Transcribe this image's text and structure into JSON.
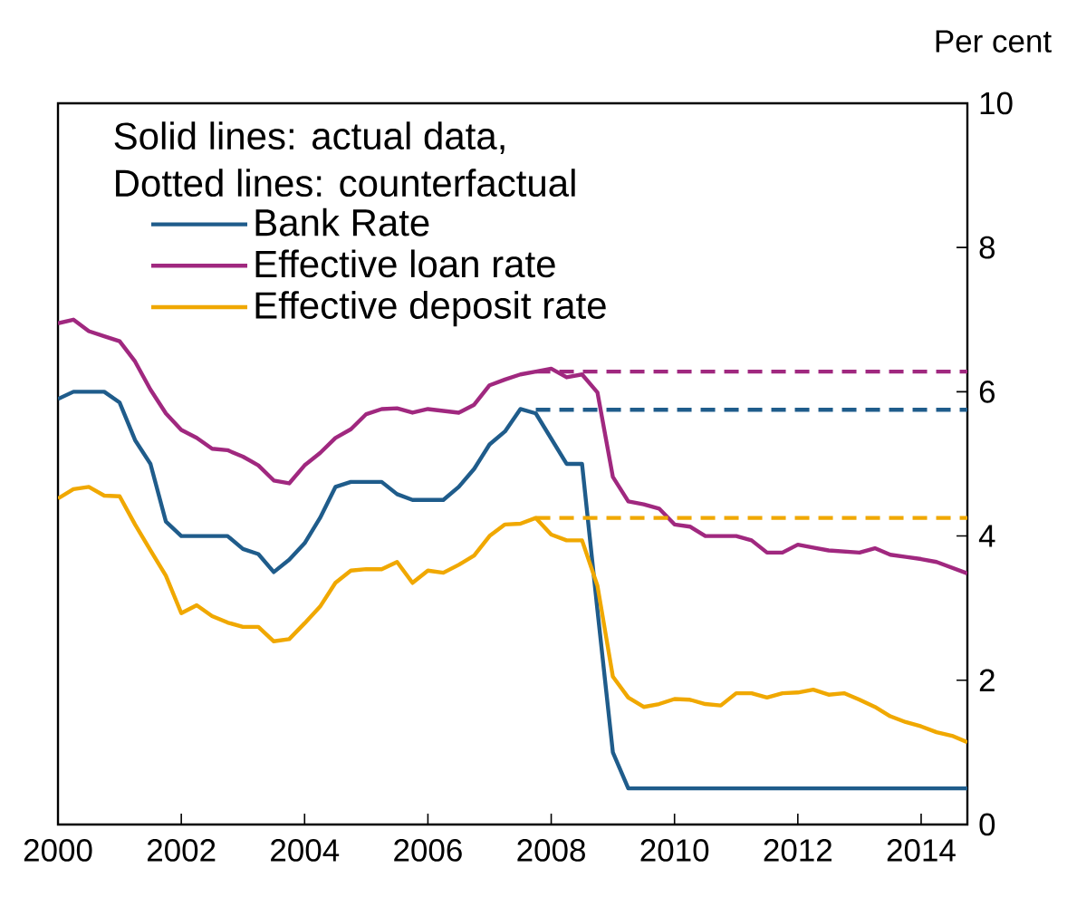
{
  "chart_data": {
    "type": "line",
    "ylabel": "Per cent",
    "legend_title": "Solid lines: actual data, Dotted lines: counterfactual",
    "legend": "top left",
    "marker": "none",
    "xlim": [
      2000,
      2014.75
    ],
    "xticks": [
      2000,
      2002,
      2004,
      2006,
      2008,
      2010,
      2012,
      2014
    ],
    "ylim": [
      0,
      10
    ],
    "yticks": [
      0,
      2,
      4,
      6,
      8,
      10
    ],
    "series": [
      {
        "name": "Bank Rate",
        "color": "#1f5c8b",
        "line_style": "solid",
        "x": [
          2000,
          2000.25,
          2000.75,
          2001,
          2001.25,
          2001.5,
          2001.75,
          2002,
          2002.75,
          2003,
          2003.25,
          2003.5,
          2003.75,
          2004,
          2004.25,
          2004.5,
          2004.75,
          2005.25,
          2005.5,
          2005.75,
          2006.25,
          2006.5,
          2006.75,
          2007,
          2007.25,
          2007.5,
          2007.75,
          2008.25,
          2008.5,
          2008.75,
          2009,
          2009.25,
          2014.75
        ],
        "values": [
          5.9,
          6.0,
          6.0,
          5.85,
          5.33,
          5.0,
          4.2,
          4.0,
          4.0,
          3.82,
          3.75,
          3.5,
          3.67,
          3.9,
          4.25,
          4.68,
          4.75,
          4.75,
          4.58,
          4.5,
          4.5,
          4.68,
          4.93,
          5.27,
          5.45,
          5.76,
          5.7,
          5.0,
          5.0,
          2.97,
          1.0,
          0.5,
          0.5
        ]
      },
      {
        "name": "Effective loan rate",
        "color": "#a0287f",
        "line_style": "solid",
        "x": [
          2000,
          2000.25,
          2000.5,
          2000.75,
          2001,
          2001.25,
          2001.5,
          2001.75,
          2002,
          2002.25,
          2002.5,
          2002.75,
          2003,
          2003.25,
          2003.5,
          2003.75,
          2004,
          2004.25,
          2004.5,
          2004.75,
          2005,
          2005.25,
          2005.5,
          2005.75,
          2006,
          2006.5,
          2006.75,
          2007,
          2007.25,
          2007.5,
          2007.75,
          2008,
          2008.25,
          2008.5,
          2008.75,
          2009,
          2009.25,
          2009.5,
          2009.75,
          2010,
          2010.25,
          2010.5,
          2011,
          2011.25,
          2011.5,
          2011.75,
          2012,
          2012.25,
          2012.5,
          2013,
          2013.25,
          2013.5,
          2013.75,
          2014,
          2014.25,
          2014.5,
          2014.75
        ],
        "values": [
          6.95,
          7.0,
          6.84,
          6.77,
          6.7,
          6.42,
          6.03,
          5.7,
          5.47,
          5.36,
          5.21,
          5.19,
          5.1,
          4.98,
          4.77,
          4.73,
          4.98,
          5.15,
          5.36,
          5.48,
          5.69,
          5.76,
          5.77,
          5.71,
          5.76,
          5.71,
          5.82,
          6.09,
          6.17,
          6.24,
          6.28,
          6.32,
          6.2,
          6.24,
          5.99,
          4.82,
          4.48,
          4.44,
          4.38,
          4.16,
          4.13,
          4.0,
          4.0,
          3.94,
          3.77,
          3.77,
          3.88,
          3.84,
          3.8,
          3.77,
          3.83,
          3.74,
          3.71,
          3.68,
          3.64,
          3.56,
          3.48
        ]
      },
      {
        "name": "Effective deposit rate",
        "color": "#f0a800",
        "line_style": "solid",
        "x": [
          2000,
          2000.25,
          2000.5,
          2000.75,
          2001,
          2001.25,
          2001.5,
          2001.75,
          2002,
          2002.25,
          2002.5,
          2002.75,
          2003,
          2003.25,
          2003.5,
          2003.75,
          2004,
          2004.25,
          2004.5,
          2004.75,
          2005,
          2005.25,
          2005.5,
          2005.75,
          2006,
          2006.25,
          2006.5,
          2006.75,
          2007,
          2007.25,
          2007.5,
          2007.75,
          2008,
          2008.25,
          2008.5,
          2008.75,
          2009,
          2009.25,
          2009.5,
          2009.75,
          2010,
          2010.25,
          2010.5,
          2010.75,
          2011,
          2011.25,
          2011.5,
          2011.75,
          2012,
          2012.25,
          2012.5,
          2012.75,
          2013,
          2013.25,
          2013.5,
          2013.75,
          2014,
          2014.25,
          2014.5,
          2014.75
        ],
        "values": [
          4.52,
          4.65,
          4.68,
          4.56,
          4.55,
          4.16,
          3.8,
          3.45,
          2.93,
          3.04,
          2.89,
          2.8,
          2.74,
          2.74,
          2.54,
          2.57,
          2.79,
          3.02,
          3.35,
          3.52,
          3.54,
          3.54,
          3.64,
          3.35,
          3.52,
          3.49,
          3.6,
          3.73,
          4.0,
          4.16,
          4.17,
          4.25,
          4.02,
          3.94,
          3.94,
          3.31,
          2.05,
          1.76,
          1.63,
          1.67,
          1.74,
          1.73,
          1.67,
          1.65,
          1.82,
          1.82,
          1.76,
          1.82,
          1.83,
          1.87,
          1.8,
          1.82,
          1.73,
          1.63,
          1.5,
          1.42,
          1.36,
          1.28,
          1.23,
          1.14
        ]
      },
      {
        "color": "#a0287f",
        "line_style": "dashed",
        "x": [
          2007.75,
          2014.75
        ],
        "values": [
          6.28,
          6.28
        ]
      },
      {
        "color": "#1f5c8b",
        "line_style": "dashed",
        "x": [
          2007.75,
          2014.75
        ],
        "values": [
          5.75,
          5.75
        ]
      },
      {
        "color": "#f0a800",
        "line_style": "dashed",
        "x": [
          2007.75,
          2014.75
        ],
        "values": [
          4.25,
          4.25
        ]
      }
    ]
  }
}
